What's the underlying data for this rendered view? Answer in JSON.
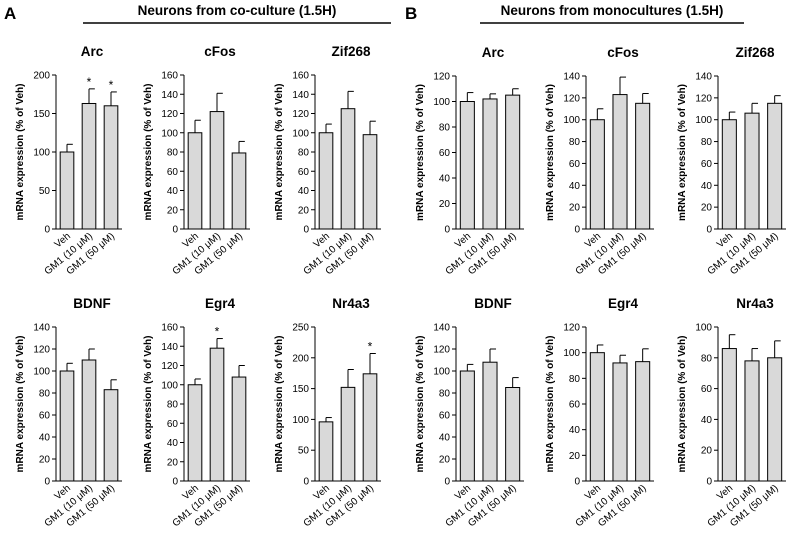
{
  "figure": {
    "panels": [
      {
        "letter": "A",
        "title": "Neurons from co-culture (1.5H)"
      },
      {
        "letter": "B",
        "title": "Neurons from monocultures (1.5H)"
      }
    ]
  },
  "chart_data": [
    {
      "type": "bar",
      "panel": "A",
      "title": "Arc",
      "categories": [
        "Veh",
        "GM1 (10 μM)",
        "GM1 (50 μM)"
      ],
      "values": [
        100,
        163,
        160
      ],
      "errors": [
        10,
        19,
        18
      ],
      "significance": [
        "",
        "*",
        "*"
      ],
      "ylabel": "mRNA expression (% of Veh)",
      "ylim": [
        0,
        200
      ],
      "yticks": [
        0,
        50,
        100,
        150,
        200
      ],
      "bar_color": "#d9d9d9"
    },
    {
      "type": "bar",
      "panel": "A",
      "title": "cFos",
      "categories": [
        "Veh",
        "GM1 (10 μM)",
        "GM1 (50 μM)"
      ],
      "values": [
        100,
        122,
        79
      ],
      "errors": [
        13,
        19,
        12
      ],
      "significance": [
        "",
        "",
        ""
      ],
      "ylabel": "mRNA expression (% of Veh)",
      "ylim": [
        0,
        160
      ],
      "yticks": [
        0,
        20,
        40,
        60,
        80,
        100,
        120,
        140,
        160
      ],
      "bar_color": "#d9d9d9"
    },
    {
      "type": "bar",
      "panel": "A",
      "title": "Zif268",
      "categories": [
        "Veh",
        "GM1 (10 μM)",
        "GM1 (50 μM)"
      ],
      "values": [
        100,
        125,
        98
      ],
      "errors": [
        9,
        18,
        14
      ],
      "significance": [
        "",
        "",
        ""
      ],
      "ylabel": "mRNA expression (% of Veh)",
      "ylim": [
        0,
        160
      ],
      "yticks": [
        0,
        20,
        40,
        60,
        80,
        100,
        120,
        140,
        160
      ],
      "bar_color": "#d9d9d9"
    },
    {
      "type": "bar",
      "panel": "B",
      "title": "Arc",
      "categories": [
        "Veh",
        "GM1 (10 μM)",
        "GM1 (50 μM)"
      ],
      "values": [
        100,
        102,
        105
      ],
      "errors": [
        7,
        4,
        5
      ],
      "significance": [
        "",
        "",
        ""
      ],
      "ylabel": "mRNA expression (% of Veh)",
      "ylim": [
        0,
        120
      ],
      "yticks": [
        0,
        20,
        40,
        60,
        80,
        100,
        120
      ],
      "bar_color": "#d9d9d9"
    },
    {
      "type": "bar",
      "panel": "B",
      "title": "cFos",
      "categories": [
        "Veh",
        "GM1 (10 μM)",
        "GM1 (50 μM)"
      ],
      "values": [
        100,
        123,
        115
      ],
      "errors": [
        10,
        16,
        9
      ],
      "significance": [
        "",
        "",
        ""
      ],
      "ylabel": "mRNA expression (% of Veh)",
      "ylim": [
        0,
        140
      ],
      "yticks": [
        0,
        20,
        40,
        60,
        80,
        100,
        120,
        140
      ],
      "bar_color": "#d9d9d9"
    },
    {
      "type": "bar",
      "panel": "B",
      "title": "Zif268",
      "categories": [
        "Veh",
        "GM1 (10 μM)",
        "GM1 (50 μM)"
      ],
      "values": [
        100,
        106,
        115
      ],
      "errors": [
        7,
        9,
        7
      ],
      "significance": [
        "",
        "",
        ""
      ],
      "ylabel": "mRNA expression (% of Veh)",
      "ylim": [
        0,
        140
      ],
      "yticks": [
        0,
        20,
        40,
        60,
        80,
        100,
        120,
        140
      ],
      "bar_color": "#d9d9d9"
    },
    {
      "type": "bar",
      "panel": "A",
      "title": "BDNF",
      "categories": [
        "Veh",
        "GM1 (10 μM)",
        "GM1 (50 μM)"
      ],
      "values": [
        100,
        110,
        83
      ],
      "errors": [
        7,
        10,
        9
      ],
      "significance": [
        "",
        "",
        ""
      ],
      "ylabel": "mRNA expression (% of Veh)",
      "ylim": [
        0,
        140
      ],
      "yticks": [
        0,
        20,
        40,
        60,
        80,
        100,
        120,
        140
      ],
      "bar_color": "#d9d9d9"
    },
    {
      "type": "bar",
      "panel": "A",
      "title": "Egr4",
      "categories": [
        "Veh",
        "GM1 (10 μM)",
        "GM1 (50 μM)"
      ],
      "values": [
        100,
        138,
        108
      ],
      "errors": [
        6,
        10,
        12
      ],
      "significance": [
        "",
        "*",
        ""
      ],
      "ylabel": "mRNA expression (% of Veh)",
      "ylim": [
        0,
        160
      ],
      "yticks": [
        0,
        20,
        40,
        60,
        80,
        100,
        120,
        140,
        160
      ],
      "bar_color": "#d9d9d9"
    },
    {
      "type": "bar",
      "panel": "A",
      "title": "Nr4a3",
      "categories": [
        "Veh",
        "GM1 (10 μM)",
        "GM1 (50 μM)"
      ],
      "values": [
        96,
        152,
        174
      ],
      "errors": [
        7,
        29,
        33
      ],
      "significance": [
        "",
        "",
        "*"
      ],
      "ylabel": "mRNA expression (% of Veh)",
      "ylim": [
        0,
        250
      ],
      "yticks": [
        0,
        50,
        100,
        150,
        200,
        250
      ],
      "bar_color": "#d9d9d9"
    },
    {
      "type": "bar",
      "panel": "B",
      "title": "BDNF",
      "categories": [
        "Veh",
        "GM1 (10 μM)",
        "GM1 (50 μM)"
      ],
      "values": [
        100,
        108,
        85
      ],
      "errors": [
        6,
        12,
        9
      ],
      "significance": [
        "",
        "",
        ""
      ],
      "ylabel": "mRNA expression (% of Veh)",
      "ylim": [
        0,
        140
      ],
      "yticks": [
        0,
        20,
        40,
        60,
        80,
        100,
        120,
        140
      ],
      "bar_color": "#d9d9d9"
    },
    {
      "type": "bar",
      "panel": "B",
      "title": "Egr4",
      "categories": [
        "Veh",
        "GM1 (10 μM)",
        "GM1 (50 μM)"
      ],
      "values": [
        100,
        92,
        93
      ],
      "errors": [
        6,
        6,
        10
      ],
      "significance": [
        "",
        "",
        ""
      ],
      "ylabel": "mRNA expression (% of Veh)",
      "ylim": [
        0,
        120
      ],
      "yticks": [
        0,
        20,
        40,
        60,
        80,
        100,
        120
      ],
      "bar_color": "#d9d9d9"
    },
    {
      "type": "bar",
      "panel": "B",
      "title": "Nr4a3",
      "categories": [
        "Veh",
        "GM1 (10 μM)",
        "GM1 (50 μM)"
      ],
      "values": [
        86,
        78,
        80
      ],
      "errors": [
        9,
        8,
        11
      ],
      "significance": [
        "",
        "",
        ""
      ],
      "ylabel": "mRNA expression (% of Veh)",
      "ylim": [
        0,
        100
      ],
      "yticks": [
        0,
        20,
        40,
        60,
        80,
        100
      ],
      "bar_color": "#d9d9d9"
    }
  ]
}
